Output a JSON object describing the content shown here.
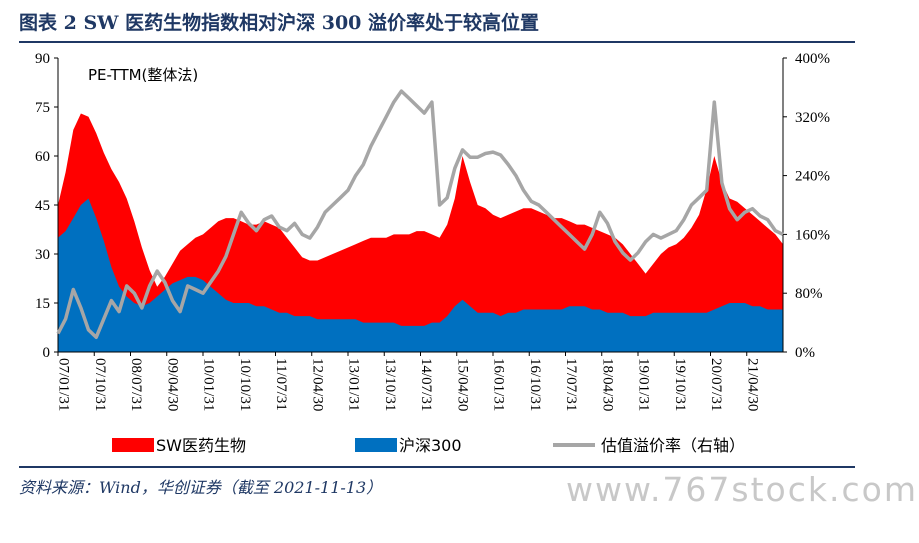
{
  "header": {
    "title": "图表 2   SW 医药生物指数相对沪深 300 溢价率处于较高位置"
  },
  "footer": {
    "source": "资料来源：Wind，华创证券（截至 2021-11-13）",
    "watermark": "www.767stock.com"
  },
  "colors": {
    "pharma": "#ff0000",
    "hs300": "#0070c0",
    "premium": "#a6a6a6",
    "title": "#1f3864"
  },
  "chart_data": {
    "type": "area",
    "annotation": "PE-TTM(整体法)",
    "xlabel": "",
    "ylabel": "",
    "ylim": [
      0,
      90
    ],
    "y_ticks": [
      "0",
      "15",
      "30",
      "45",
      "60",
      "75",
      "90"
    ],
    "y2lim": [
      0,
      400
    ],
    "y2_ticks": [
      "0%",
      "80%",
      "160%",
      "240%",
      "320%",
      "400%"
    ],
    "x_ticks": [
      "07/01/31",
      "07/10/31",
      "08/07/31",
      "09/04/30",
      "10/01/31",
      "10/10/31",
      "11/07/31",
      "12/04/30",
      "13/01/31",
      "13/10/31",
      "14/07/31",
      "15/04/30",
      "16/01/31",
      "16/10/31",
      "17/07/31",
      "18/04/30",
      "19/01/31",
      "19/10/31",
      "20/07/31",
      "21/04/30"
    ],
    "legend_position": "bottom",
    "series": [
      {
        "name": "SW医药生物",
        "type": "area",
        "axis": "left",
        "values": [
          45,
          55,
          68,
          73,
          72,
          67,
          61,
          56,
          52,
          47,
          40,
          32,
          25,
          20,
          23,
          27,
          31,
          33,
          35,
          36,
          38,
          40,
          41,
          41,
          40,
          39,
          39,
          40,
          39,
          38,
          35,
          32,
          29,
          28,
          28,
          29,
          30,
          31,
          32,
          33,
          34,
          35,
          35,
          35,
          36,
          36,
          36,
          37,
          37,
          36,
          35,
          39,
          47,
          60,
          52,
          45,
          44,
          42,
          41,
          42,
          43,
          44,
          44,
          43,
          42,
          41,
          41,
          40,
          39,
          39,
          38,
          37,
          36,
          35,
          33,
          30,
          27,
          24,
          27,
          30,
          32,
          33,
          35,
          38,
          42,
          50,
          60,
          52,
          47,
          46,
          44,
          42,
          40,
          38,
          36,
          33
        ]
      },
      {
        "name": "沪深300",
        "type": "area",
        "axis": "left",
        "values": [
          35,
          37,
          41,
          45,
          47,
          41,
          34,
          26,
          20,
          17,
          15,
          14,
          15,
          17,
          19,
          21,
          22,
          23,
          23,
          22,
          20,
          18,
          16,
          15,
          15,
          15,
          14,
          14,
          13,
          12,
          12,
          11,
          11,
          11,
          10,
          10,
          10,
          10,
          10,
          10,
          9,
          9,
          9,
          9,
          9,
          8,
          8,
          8,
          8,
          9,
          9,
          11,
          14,
          16,
          14,
          12,
          12,
          12,
          11,
          12,
          12,
          13,
          13,
          13,
          13,
          13,
          13,
          14,
          14,
          14,
          13,
          13,
          12,
          12,
          12,
          11,
          11,
          11,
          12,
          12,
          12,
          12,
          12,
          12,
          12,
          12,
          13,
          14,
          15,
          15,
          15,
          14,
          14,
          13,
          13,
          13
        ]
      },
      {
        "name": "估值溢价率（右轴）",
        "type": "line",
        "axis": "right",
        "values": [
          25,
          45,
          85,
          60,
          30,
          20,
          45,
          70,
          55,
          90,
          80,
          60,
          90,
          110,
          95,
          70,
          55,
          90,
          85,
          80,
          95,
          110,
          130,
          160,
          190,
          175,
          165,
          180,
          185,
          170,
          165,
          175,
          160,
          155,
          170,
          190,
          200,
          210,
          220,
          240,
          255,
          280,
          300,
          320,
          340,
          355,
          345,
          335,
          325,
          340,
          200,
          210,
          250,
          275,
          265,
          265,
          270,
          272,
          268,
          255,
          240,
          220,
          205,
          200,
          190,
          180,
          170,
          160,
          150,
          140,
          160,
          190,
          175,
          150,
          135,
          125,
          135,
          150,
          160,
          155,
          160,
          165,
          180,
          200,
          210,
          220,
          340,
          230,
          195,
          180,
          190,
          195,
          185,
          180,
          165,
          160
        ]
      }
    ]
  }
}
